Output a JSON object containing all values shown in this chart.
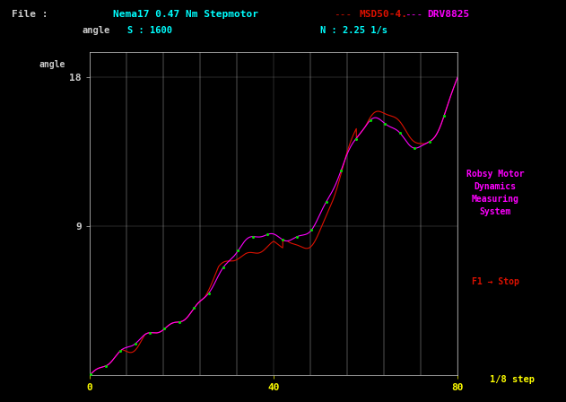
{
  "bg_color": "#000000",
  "title_line1": "Nema17 0.47 Nm Stepmotor",
  "title_msd": "MSD50-4.",
  "title_drv": "DRV8825",
  "file_label": "File :",
  "angle_label": "angle",
  "s_label": "S : 1600",
  "n_label": "N : 2.25 1/s",
  "step_label": "1/8 step",
  "robsy_text": "Robsy Motor\nDynamics\nMeasuring\nSystem",
  "f1_text": "F1 → Stop",
  "x_ticks": [
    0,
    40,
    80
  ],
  "y_ticks": [
    9,
    18
  ],
  "xlim": [
    0,
    80
  ],
  "ylim": [
    0,
    19.5
  ],
  "color_cyan": "#00FFFF",
  "color_yellow": "#FFFF00",
  "color_magenta": "#FF00FF",
  "color_red": "#DD1100",
  "color_green": "#00DD00",
  "color_white": "#CCCCCC",
  "color_gray": "#888888",
  "header_bg": "#000080"
}
